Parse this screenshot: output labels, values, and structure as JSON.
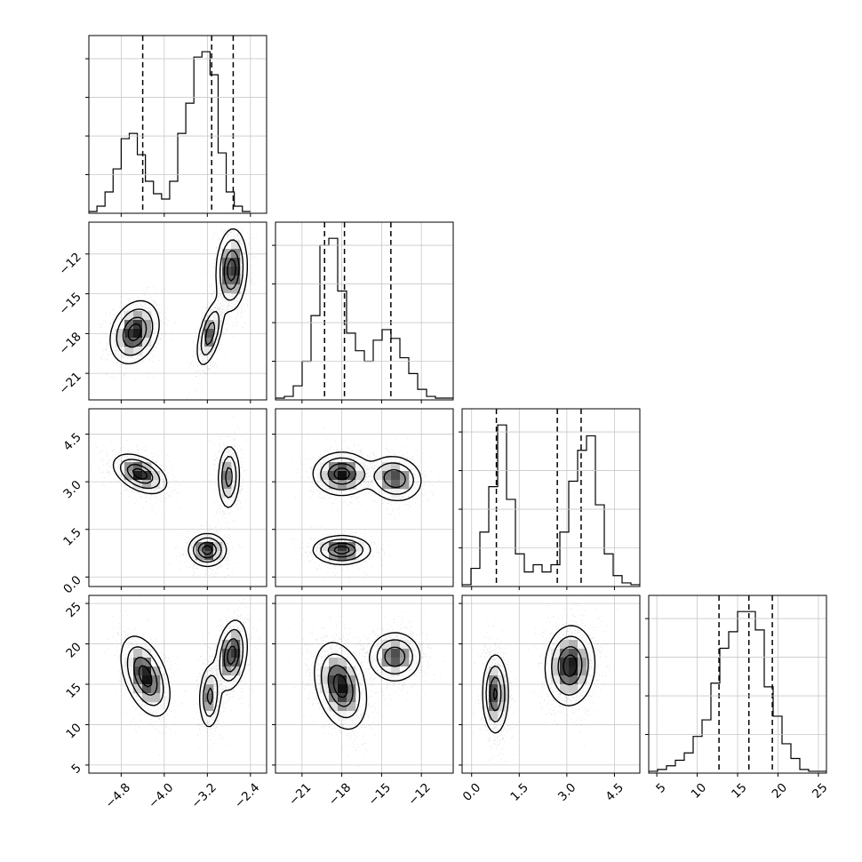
{
  "chart_data": {
    "type": "corner",
    "title": "",
    "parameters": [
      {
        "label": "",
        "range": [
          -5.4,
          -2.1
        ],
        "ticks": [
          -4.8,
          -4.0,
          -3.2,
          -2.4
        ],
        "tick_labels": [
          "−4.8",
          "−4.0",
          "−3.2",
          "−2.4"
        ],
        "quantiles": [
          -4.4,
          -3.12,
          -2.72
        ],
        "histogram": {
          "start": -5.4,
          "step": 0.15,
          "counts": [
            1,
            4,
            12,
            25,
            42,
            45,
            33,
            18,
            11,
            8,
            18,
            45,
            62,
            88,
            91,
            78,
            34,
            12,
            4,
            1
          ]
        }
      },
      {
        "label": "",
        "range": [
          -23.0,
          -9.6
        ],
        "ticks": [
          -21,
          -18,
          -15,
          -12
        ],
        "tick_labels": [
          "−21",
          "−18",
          "−15",
          "−12"
        ],
        "quantiles": [
          -19.3,
          -17.8,
          -14.3
        ],
        "histogram": {
          "start": -23.0,
          "step": 0.67,
          "counts": [
            1,
            2,
            8,
            22,
            48,
            88,
            92,
            62,
            38,
            28,
            22,
            34,
            40,
            35,
            24,
            15,
            6,
            2,
            1,
            1
          ]
        }
      },
      {
        "label": "",
        "range": [
          -0.3,
          5.3
        ],
        "ticks": [
          0.0,
          1.5,
          3.0,
          4.5
        ],
        "tick_labels": [
          "0.0",
          "1.5",
          "3.0",
          "4.5"
        ],
        "quantiles": [
          0.78,
          2.7,
          3.45
        ],
        "histogram": {
          "start": -0.3,
          "step": 0.28,
          "counts": [
            1,
            10,
            30,
            55,
            89,
            48,
            18,
            8,
            12,
            8,
            12,
            30,
            58,
            75,
            83,
            45,
            18,
            6,
            2,
            1
          ]
        }
      },
      {
        "label": "",
        "range": [
          4.0,
          26.0
        ],
        "ticks": [
          5,
          10,
          15,
          20,
          25
        ],
        "tick_labels": [
          "5",
          "10",
          "15",
          "20",
          "25"
        ],
        "quantiles": [
          12.7,
          16.4,
          19.3
        ],
        "histogram": {
          "start": 4.0,
          "step": 1.1,
          "counts": [
            1,
            2,
            4,
            7,
            11,
            20,
            29,
            49,
            68,
            77,
            88,
            88,
            78,
            47,
            31,
            16,
            8,
            2,
            1,
            1
          ]
        }
      }
    ],
    "pairs": [
      {
        "x": 0,
        "y": 1,
        "modes": [
          {
            "mx": -4.55,
            "my": -17.9,
            "sx": 0.22,
            "sy": 1.15,
            "rho": 0.25,
            "w": 1.0
          },
          {
            "mx": -3.15,
            "my": -18.0,
            "sx": 0.12,
            "sy": 1.2,
            "rho": 0.55,
            "w": 0.8
          },
          {
            "mx": -2.75,
            "my": -13.2,
            "sx": 0.14,
            "sy": 1.5,
            "rho": 0.1,
            "w": 1.0
          }
        ]
      },
      {
        "x": 0,
        "y": 2,
        "modes": [
          {
            "mx": -4.45,
            "my": 3.25,
            "sx": 0.24,
            "sy": 0.3,
            "rho": -0.45,
            "w": 1.0
          },
          {
            "mx": -3.2,
            "my": 0.85,
            "sx": 0.17,
            "sy": 0.25,
            "rho": 0.0,
            "w": 1.0
          },
          {
            "mx": -2.8,
            "my": 3.15,
            "sx": 0.1,
            "sy": 0.5,
            "rho": 0.05,
            "w": 0.75
          }
        ]
      },
      {
        "x": 0,
        "y": 3,
        "modes": [
          {
            "mx": -4.35,
            "my": 16.0,
            "sx": 0.22,
            "sy": 2.4,
            "rho": -0.45,
            "w": 1.0
          },
          {
            "mx": -3.15,
            "my": 13.5,
            "sx": 0.1,
            "sy": 2.0,
            "rho": 0.1,
            "w": 0.7
          },
          {
            "mx": -2.75,
            "my": 18.6,
            "sx": 0.14,
            "sy": 2.1,
            "rho": 0.25,
            "w": 1.0
          }
        ]
      },
      {
        "x": 1,
        "y": 2,
        "modes": [
          {
            "mx": -18.0,
            "my": 3.25,
            "sx": 1.05,
            "sy": 0.33,
            "rho": 0.0,
            "w": 1.0
          },
          {
            "mx": -14.0,
            "my": 3.1,
            "sx": 1.0,
            "sy": 0.35,
            "rho": -0.1,
            "w": 0.85
          },
          {
            "mx": -18.0,
            "my": 0.85,
            "sx": 1.05,
            "sy": 0.22,
            "rho": 0.0,
            "w": 1.0
          }
        ]
      },
      {
        "x": 1,
        "y": 3,
        "modes": [
          {
            "mx": -18.1,
            "my": 14.8,
            "sx": 0.95,
            "sy": 2.6,
            "rho": -0.3,
            "w": 1.0
          },
          {
            "mx": -14.0,
            "my": 18.4,
            "sx": 0.95,
            "sy": 1.5,
            "rho": 0.0,
            "w": 0.85
          }
        ]
      },
      {
        "x": 2,
        "y": 3,
        "modes": [
          {
            "mx": 0.75,
            "my": 13.8,
            "sx": 0.2,
            "sy": 2.4,
            "rho": 0.0,
            "w": 0.9
          },
          {
            "mx": 3.1,
            "my": 17.3,
            "sx": 0.38,
            "sy": 2.4,
            "rho": 0.05,
            "w": 1.0
          }
        ]
      }
    ]
  }
}
